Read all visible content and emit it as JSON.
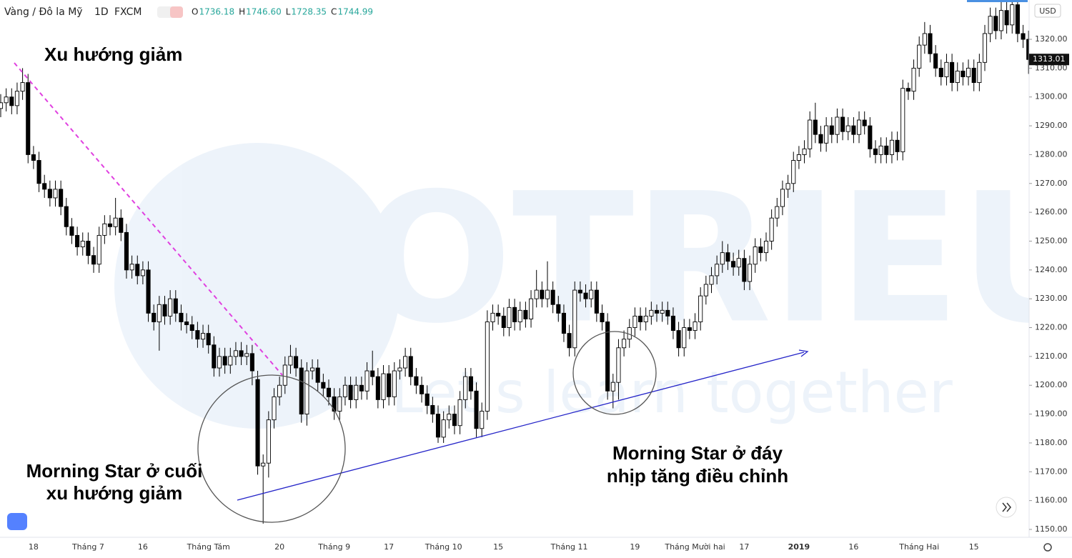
{
  "chart_data": {
    "type": "candlestick",
    "header": {
      "symbol": "Vàng / Đô la Mỹ",
      "interval": "1D",
      "source": "FXCM",
      "ohlc": [
        {
          "key": "O",
          "value": "1736.18"
        },
        {
          "key": "H",
          "value": "1746.60"
        },
        {
          "key": "L",
          "value": "1728.35"
        },
        {
          "key": "C",
          "value": "1744.99"
        }
      ]
    },
    "currency": "USD",
    "annotations": {
      "trend": "Xu hướng giảm",
      "left": [
        "Morning Star ở cuối",
        "xu hướng giảm"
      ],
      "right": [
        "Morning Star ở đáy",
        "nhịp tăng điều chỉnh"
      ]
    },
    "watermark": [
      "TOTRIEU",
      "Let's learn together"
    ],
    "categories": [
      null,
      null,
      null,
      null,
      null,
      null,
      "18",
      null,
      null,
      null,
      null,
      null,
      null,
      null,
      null,
      null,
      "Tháng 7",
      null,
      null,
      null,
      null,
      null,
      null,
      null,
      null,
      null,
      "16",
      null,
      null,
      null,
      null,
      null,
      null,
      null,
      null,
      null,
      null,
      null,
      "Tháng Tám",
      null,
      null,
      null,
      null,
      null,
      null,
      null,
      null,
      null,
      null,
      null,
      null,
      "20",
      null,
      null,
      null,
      null,
      null,
      null,
      null,
      null,
      null,
      "Tháng 9",
      null,
      null,
      null,
      null,
      null,
      null,
      null,
      null,
      null,
      "17",
      null,
      null,
      null,
      null,
      null,
      null,
      null,
      null,
      null,
      "Tháng 10",
      null,
      null,
      null,
      null,
      null,
      null,
      null,
      null,
      null,
      "15",
      null,
      null,
      null,
      null,
      null,
      null,
      null,
      null,
      null,
      null,
      null,
      null,
      "Tháng 11",
      null,
      null,
      null,
      null,
      null,
      null,
      null,
      null,
      null,
      null,
      null,
      "19",
      null,
      null,
      null,
      null,
      null,
      null,
      null,
      null,
      null,
      null,
      "Tháng Mười hai",
      null,
      null,
      null,
      null,
      null,
      null,
      null,
      null,
      "17",
      null,
      null,
      null,
      null,
      null,
      null,
      null,
      null,
      null,
      "2019",
      null,
      null,
      null,
      null,
      null,
      null,
      null,
      null,
      null,
      "16",
      null,
      null,
      null,
      null,
      null,
      null,
      null,
      null,
      null,
      null,
      null,
      "Tháng Hai",
      null,
      null,
      null,
      null,
      null,
      null,
      null,
      null,
      null,
      "15",
      null,
      null,
      null,
      null,
      null,
      null,
      null,
      null,
      null,
      null
    ],
    "series": [
      {
        "up_color": "#ffffff",
        "down_color": "#000000",
        "open": [
          1296,
          1298,
          1300,
          1297,
          1302,
          1305,
          1280,
          1278,
          1270,
          1268,
          1265,
          1268,
          1262,
          1255,
          1252,
          1248,
          1250,
          1245,
          1242,
          1252,
          1256,
          1255,
          1258,
          1253,
          1240,
          1242,
          1238,
          1240,
          1225,
          1222,
          1228,
          1224,
          1230,
          1225,
          1222,
          1221,
          1219,
          1216,
          1218,
          1214,
          1206,
          1210,
          1207,
          1210,
          1212,
          1210,
          1211,
          1202,
          1172,
          1173,
          1188,
          1196,
          1200,
          1207,
          1210,
          1206,
          1190,
          1205,
          1206,
          1201,
          1199,
          1196,
          1191,
          1196,
          1200,
          1195,
          1200,
          1198,
          1205,
          1203,
          1195,
          1204,
          1196,
          1205,
          1206,
          1210,
          1203,
          1200,
          1197,
          1193,
          1190,
          1182,
          1188,
          1190,
          1186,
          1195,
          1203,
          1198,
          1185,
          1191,
          1222,
          1225,
          1224,
          1220,
          1227,
          1222,
          1226,
          1223,
          1230,
          1233,
          1230,
          1233,
          1228,
          1225,
          1218,
          1213,
          1233,
          1232,
          1230,
          1233,
          1225,
          1222,
          1198,
          1201,
          1213,
          1216,
          1220,
          1224,
          1222,
          1224,
          1226,
          1225,
          1226,
          1224,
          1219,
          1213,
          1220,
          1219,
          1222,
          1231,
          1235,
          1238,
          1242,
          1246,
          1243,
          1241,
          1244,
          1236,
          1242,
          1248,
          1246,
          1250,
          1258,
          1262,
          1268,
          1270,
          1278,
          1280,
          1282,
          1292,
          1287,
          1284,
          1290,
          1287,
          1293,
          1288,
          1290,
          1287,
          1292,
          1290,
          1282,
          1280,
          1283,
          1280,
          1285,
          1281,
          1303,
          1302,
          1310,
          1318,
          1322,
          1315,
          1310,
          1307,
          1312,
          1305,
          1309,
          1307,
          1310,
          1305,
          1312,
          1322,
          1328,
          1323,
          1330,
          1325,
          1332,
          1322,
          1320
        ],
        "high": [
          1301,
          1303,
          1303,
          1305,
          1310,
          1308,
          1283,
          1281,
          1273,
          1271,
          1271,
          1271,
          1265,
          1258,
          1255,
          1253,
          1253,
          1248,
          1255,
          1259,
          1259,
          1265,
          1261,
          1256,
          1245,
          1245,
          1243,
          1243,
          1228,
          1231,
          1231,
          1233,
          1233,
          1228,
          1225,
          1224,
          1222,
          1221,
          1221,
          1217,
          1213,
          1213,
          1213,
          1215,
          1215,
          1214,
          1214,
          1205,
          1176,
          1191,
          1199,
          1203,
          1210,
          1214,
          1213,
          1209,
          1208,
          1209,
          1209,
          1204,
          1202,
          1199,
          1199,
          1203,
          1203,
          1203,
          1203,
          1208,
          1212,
          1206,
          1207,
          1207,
          1208,
          1209,
          1213,
          1213,
          1206,
          1203,
          1200,
          1196,
          1193,
          1191,
          1193,
          1193,
          1198,
          1206,
          1206,
          1201,
          1194,
          1226,
          1228,
          1228,
          1227,
          1230,
          1230,
          1229,
          1229,
          1233,
          1240,
          1236,
          1243,
          1236,
          1231,
          1228,
          1221,
          1236,
          1236,
          1235,
          1236,
          1236,
          1228,
          1225,
          1204,
          1216,
          1219,
          1223,
          1227,
          1227,
          1227,
          1229,
          1228,
          1229,
          1229,
          1227,
          1222,
          1223,
          1223,
          1225,
          1234,
          1238,
          1241,
          1245,
          1250,
          1249,
          1246,
          1247,
          1247,
          1245,
          1251,
          1251,
          1253,
          1261,
          1265,
          1271,
          1273,
          1281,
          1283,
          1285,
          1295,
          1298,
          1290,
          1293,
          1293,
          1296,
          1296,
          1293,
          1293,
          1295,
          1295,
          1293,
          1285,
          1286,
          1286,
          1288,
          1288,
          1306,
          1305,
          1313,
          1321,
          1326,
          1325,
          1318,
          1313,
          1315,
          1315,
          1312,
          1312,
          1313,
          1313,
          1315,
          1325,
          1331,
          1331,
          1333,
          1333,
          1335,
          1335,
          1325,
          1323
        ],
        "low": [
          1293,
          1295,
          1294,
          1294,
          1299,
          1277,
          1275,
          1267,
          1265,
          1262,
          1262,
          1259,
          1252,
          1249,
          1245,
          1245,
          1242,
          1239,
          1239,
          1249,
          1252,
          1252,
          1250,
          1237,
          1237,
          1235,
          1235,
          1222,
          1219,
          1212,
          1221,
          1221,
          1222,
          1219,
          1218,
          1216,
          1213,
          1213,
          1211,
          1203,
          1203,
          1204,
          1204,
          1207,
          1207,
          1207,
          1200,
          1169,
          1152,
          1168,
          1185,
          1193,
          1197,
          1204,
          1203,
          1187,
          1186,
          1202,
          1198,
          1196,
          1193,
          1188,
          1188,
          1193,
          1192,
          1192,
          1195,
          1195,
          1200,
          1192,
          1192,
          1193,
          1193,
          1202,
          1203,
          1200,
          1197,
          1194,
          1190,
          1187,
          1180,
          1180,
          1185,
          1183,
          1183,
          1192,
          1195,
          1182,
          1182,
          1188,
          1219,
          1221,
          1217,
          1217,
          1219,
          1219,
          1220,
          1220,
          1227,
          1227,
          1227,
          1225,
          1222,
          1215,
          1210,
          1210,
          1229,
          1227,
          1227,
          1222,
          1219,
          1195,
          1192,
          1195,
          1210,
          1213,
          1217,
          1219,
          1219,
          1221,
          1222,
          1222,
          1221,
          1216,
          1210,
          1210,
          1216,
          1216,
          1219,
          1228,
          1232,
          1235,
          1239,
          1240,
          1238,
          1238,
          1233,
          1233,
          1239,
          1243,
          1243,
          1247,
          1255,
          1259,
          1265,
          1267,
          1275,
          1277,
          1279,
          1284,
          1281,
          1281,
          1284,
          1284,
          1285,
          1285,
          1284,
          1284,
          1287,
          1279,
          1277,
          1277,
          1277,
          1277,
          1278,
          1278,
          1299,
          1299,
          1307,
          1315,
          1312,
          1307,
          1304,
          1304,
          1302,
          1302,
          1304,
          1304,
          1302,
          1302,
          1309,
          1319,
          1320,
          1320,
          1322,
          1322,
          1319,
          1317,
          1308
        ],
        "close": [
          1298,
          1300,
          1297,
          1302,
          1305,
          1280,
          1278,
          1270,
          1268,
          1265,
          1268,
          1262,
          1255,
          1252,
          1248,
          1250,
          1245,
          1242,
          1252,
          1256,
          1255,
          1258,
          1253,
          1240,
          1242,
          1238,
          1240,
          1225,
          1222,
          1228,
          1224,
          1230,
          1225,
          1222,
          1221,
          1219,
          1216,
          1218,
          1214,
          1206,
          1210,
          1207,
          1210,
          1212,
          1210,
          1211,
          1205,
          1172,
          1173,
          1188,
          1196,
          1200,
          1207,
          1210,
          1206,
          1190,
          1205,
          1206,
          1201,
          1199,
          1196,
          1191,
          1196,
          1200,
          1195,
          1200,
          1198,
          1205,
          1203,
          1195,
          1204,
          1196,
          1205,
          1206,
          1210,
          1203,
          1200,
          1197,
          1193,
          1190,
          1182,
          1188,
          1190,
          1186,
          1195,
          1203,
          1198,
          1185,
          1191,
          1222,
          1225,
          1224,
          1220,
          1227,
          1222,
          1226,
          1223,
          1230,
          1233,
          1230,
          1233,
          1228,
          1225,
          1218,
          1213,
          1233,
          1232,
          1230,
          1233,
          1225,
          1222,
          1198,
          1201,
          1213,
          1216,
          1220,
          1224,
          1222,
          1224,
          1226,
          1225,
          1226,
          1224,
          1219,
          1213,
          1220,
          1219,
          1222,
          1231,
          1235,
          1238,
          1242,
          1246,
          1243,
          1241,
          1244,
          1236,
          1242,
          1248,
          1246,
          1250,
          1258,
          1262,
          1268,
          1270,
          1278,
          1280,
          1282,
          1292,
          1287,
          1284,
          1290,
          1287,
          1293,
          1288,
          1290,
          1287,
          1292,
          1290,
          1282,
          1280,
          1283,
          1280,
          1285,
          1281,
          1303,
          1302,
          1310,
          1318,
          1322,
          1315,
          1310,
          1307,
          1312,
          1305,
          1309,
          1307,
          1310,
          1305,
          1312,
          1322,
          1328,
          1323,
          1330,
          1325,
          1332,
          1322,
          1320,
          1313.01
        ]
      }
    ],
    "ylim": [
      1147.27,
      1333.64
    ],
    "yticks": [
      {
        "value": 1150,
        "label": "1150.00"
      },
      {
        "value": 1160,
        "label": "1160.00"
      },
      {
        "value": 1170,
        "label": "1170.00"
      },
      {
        "value": 1180,
        "label": "1180.00"
      },
      {
        "value": 1190,
        "label": "1190.00"
      },
      {
        "value": 1200,
        "label": "1200.00"
      },
      {
        "value": 1210,
        "label": "1210.00"
      },
      {
        "value": 1220,
        "label": "1220.00"
      },
      {
        "value": 1230,
        "label": "1230.00"
      },
      {
        "value": 1240,
        "label": "1240.00"
      },
      {
        "value": 1250,
        "label": "1250.00"
      },
      {
        "value": 1260,
        "label": "1260.00"
      },
      {
        "value": 1270,
        "label": "1270.00"
      },
      {
        "value": 1280,
        "label": "1280.00"
      },
      {
        "value": 1290,
        "label": "1290.00"
      },
      {
        "value": 1300,
        "label": "1300.00"
      },
      {
        "value": 1310,
        "label": "1310.00"
      },
      {
        "value": 1320,
        "label": "1320.00"
      }
    ],
    "grid": false
  }
}
